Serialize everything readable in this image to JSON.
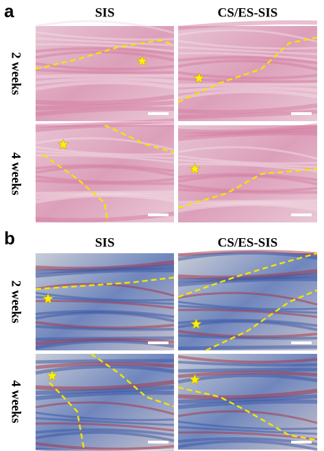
{
  "panels": [
    {
      "label": "a",
      "columns": [
        "SIS",
        "CS/ES-SIS"
      ],
      "rows": [
        "2 weeks",
        "4 weeks"
      ]
    },
    {
      "label": "b",
      "columns": [
        "SIS",
        "CS/ES-SIS"
      ],
      "rows": [
        "2 weeks",
        "4 weeks"
      ]
    }
  ]
}
